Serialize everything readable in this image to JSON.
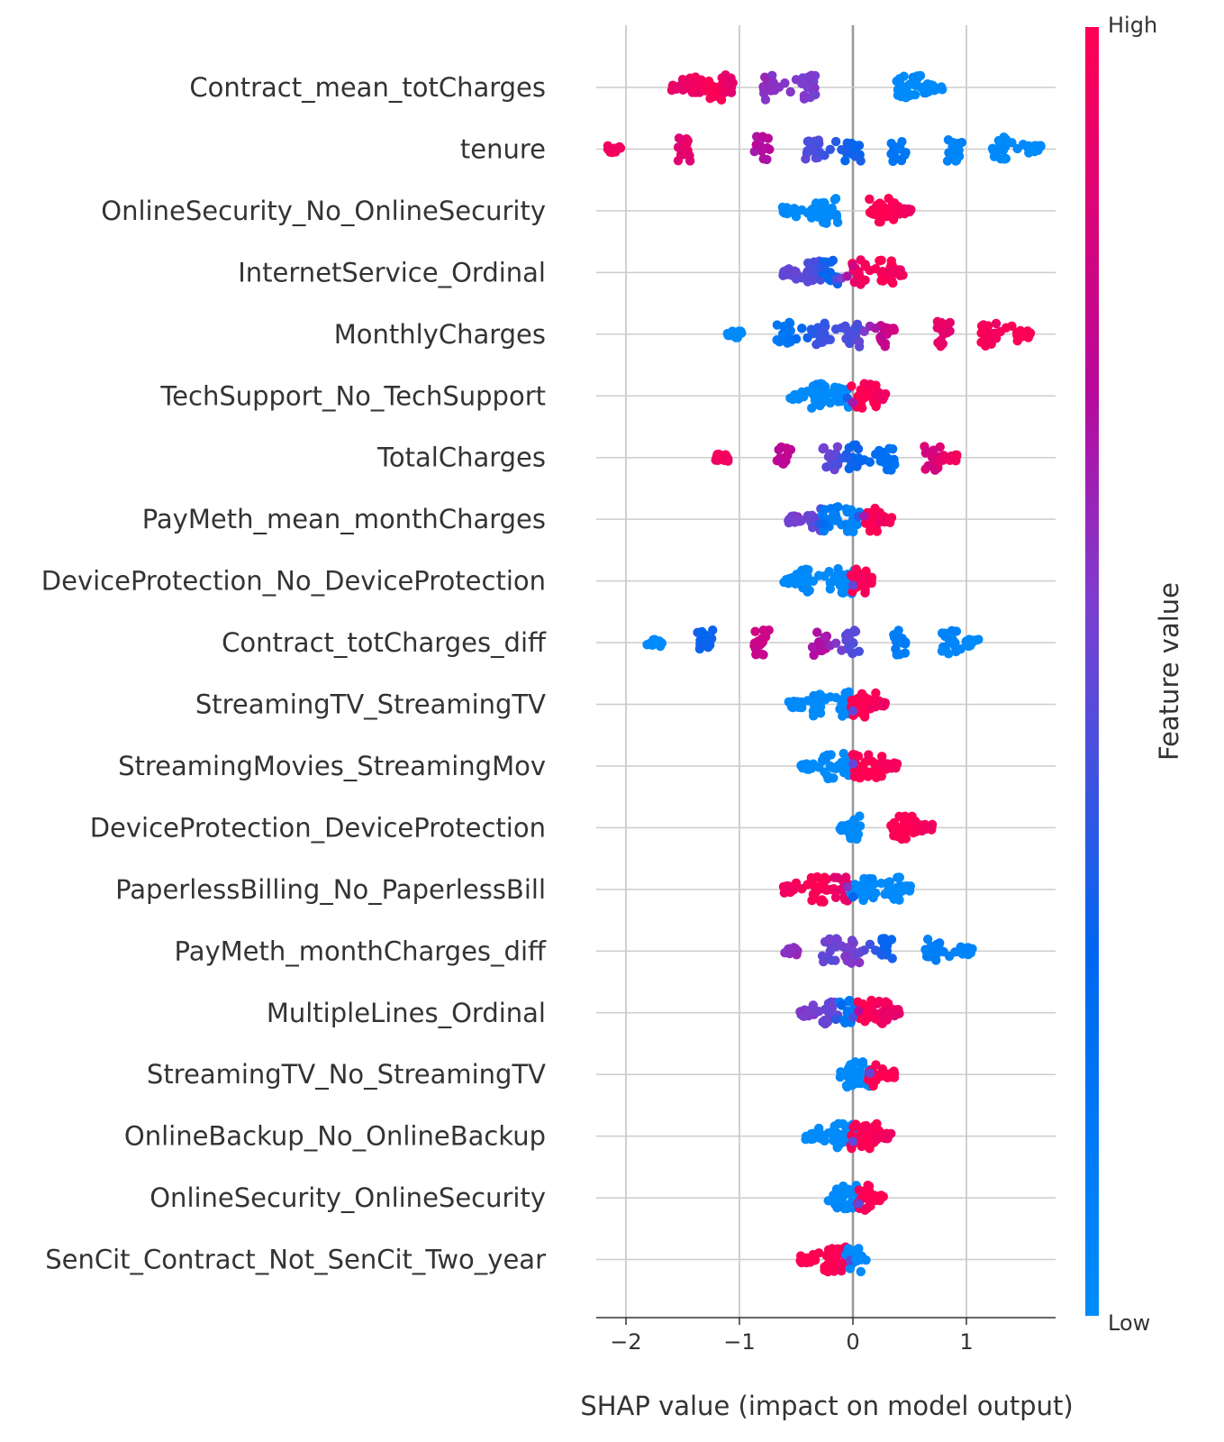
{
  "chart_data": {
    "type": "scatter",
    "subtype": "shap-beeswarm",
    "title": "",
    "xlabel": "SHAP value (impact on model output)",
    "ylabel": "",
    "xlim": [
      -2.25,
      1.8
    ],
    "xticks": [
      -2,
      -1,
      0,
      1
    ],
    "xtick_labels": [
      "−2",
      "−1",
      "0",
      "1"
    ],
    "grid": "vertical lines at ticks, horizontal line per feature row",
    "colorbar": {
      "label": "Feature value",
      "high_label": "High",
      "low_label": "Low",
      "high_color": "#ff0052",
      "mid_color": "#8b12b9",
      "low_color": "#008bfb"
    },
    "features": [
      {
        "name": "Contract_mean_totCharges",
        "points": [
          [
            -1.55,
            0.9
          ],
          [
            -1.4,
            0.95
          ],
          [
            -1.2,
            1.0
          ],
          [
            -1.1,
            0.9
          ],
          [
            -0.75,
            0.6
          ],
          [
            -0.4,
            0.55
          ],
          [
            0.45,
            0.0
          ],
          [
            0.6,
            0.0
          ],
          [
            0.72,
            0.0
          ]
        ]
      },
      {
        "name": "tenure",
        "points": [
          [
            -2.1,
            0.95
          ],
          [
            -1.5,
            0.9
          ],
          [
            -0.8,
            0.7
          ],
          [
            -0.35,
            0.45
          ],
          [
            0.0,
            0.3
          ],
          [
            0.4,
            0.15
          ],
          [
            0.9,
            0.05
          ],
          [
            1.3,
            0.02
          ],
          [
            1.6,
            0.0
          ]
        ]
      },
      {
        "name": "OnlineSecurity_No_OnlineSecurity",
        "points": [
          [
            -0.55,
            0.0
          ],
          [
            -0.3,
            0.0
          ],
          [
            -0.2,
            0.0
          ],
          [
            0.2,
            1.0
          ],
          [
            0.3,
            1.0
          ],
          [
            0.45,
            0.95
          ]
        ]
      },
      {
        "name": "InternetService_Ordinal",
        "points": [
          [
            -0.55,
            0.5
          ],
          [
            -0.35,
            0.45
          ],
          [
            -0.2,
            0.3
          ],
          [
            0.05,
            0.95
          ],
          [
            0.3,
            1.0
          ],
          [
            0.38,
            0.95
          ]
        ]
      },
      {
        "name": "MonthlyCharges",
        "points": [
          [
            -1.05,
            0.0
          ],
          [
            -0.6,
            0.15
          ],
          [
            -0.3,
            0.4
          ],
          [
            0.0,
            0.45
          ],
          [
            0.3,
            0.8
          ],
          [
            0.8,
            0.9
          ],
          [
            1.2,
            0.95
          ],
          [
            1.5,
            1.0
          ]
        ]
      },
      {
        "name": "TechSupport_No_TechSupport",
        "points": [
          [
            -0.5,
            0.0
          ],
          [
            -0.3,
            0.0
          ],
          [
            -0.1,
            0.0
          ],
          [
            0.05,
            1.0
          ],
          [
            0.15,
            1.0
          ],
          [
            0.22,
            0.95
          ]
        ]
      },
      {
        "name": "TotalCharges",
        "points": [
          [
            -1.15,
            0.95
          ],
          [
            -0.6,
            0.75
          ],
          [
            -0.2,
            0.5
          ],
          [
            0.0,
            0.3
          ],
          [
            0.3,
            0.2
          ],
          [
            0.7,
            0.85
          ],
          [
            0.85,
            0.95
          ]
        ]
      },
      {
        "name": "PayMeth_mean_monthCharges",
        "points": [
          [
            -0.5,
            0.55
          ],
          [
            -0.35,
            0.5
          ],
          [
            -0.2,
            0.1
          ],
          [
            0.0,
            0.05
          ],
          [
            0.15,
            1.0
          ],
          [
            0.28,
            0.95
          ]
        ]
      },
      {
        "name": "DeviceProtection_No_DeviceProtection",
        "points": [
          [
            -0.55,
            0.0
          ],
          [
            -0.45,
            0.0
          ],
          [
            -0.15,
            0.0
          ],
          [
            -0.05,
            0.0
          ],
          [
            0.05,
            1.0
          ],
          [
            0.1,
            0.95
          ]
        ]
      },
      {
        "name": "Contract_totCharges_diff",
        "points": [
          [
            -1.75,
            0.0
          ],
          [
            -1.3,
            0.3
          ],
          [
            -0.8,
            0.8
          ],
          [
            -0.3,
            0.7
          ],
          [
            0.0,
            0.45
          ],
          [
            0.4,
            0.1
          ],
          [
            0.85,
            0.05
          ],
          [
            1.05,
            0.0
          ]
        ]
      },
      {
        "name": "StreamingTV_StreamingTV",
        "points": [
          [
            -0.5,
            0.0
          ],
          [
            -0.3,
            0.0
          ],
          [
            -0.05,
            0.0
          ],
          [
            0.05,
            1.0
          ],
          [
            0.15,
            1.0
          ],
          [
            0.22,
            0.95
          ]
        ]
      },
      {
        "name": "StreamingMovies_StreamingMov",
        "points": [
          [
            -0.4,
            0.0
          ],
          [
            -0.2,
            0.0
          ],
          [
            -0.05,
            0.0
          ],
          [
            0.05,
            1.0
          ],
          [
            0.2,
            1.0
          ],
          [
            0.32,
            0.95
          ]
        ]
      },
      {
        "name": "DeviceProtection_DeviceProtection",
        "points": [
          [
            -0.05,
            0.0
          ],
          [
            0.0,
            0.0
          ],
          [
            0.4,
            1.0
          ],
          [
            0.5,
            1.0
          ],
          [
            0.65,
            0.95
          ]
        ]
      },
      {
        "name": "PaperlessBilling_No_PaperlessBill",
        "points": [
          [
            -0.55,
            0.95
          ],
          [
            -0.3,
            1.0
          ],
          [
            -0.1,
            0.9
          ],
          [
            0.05,
            0.0
          ],
          [
            0.15,
            0.0
          ],
          [
            0.35,
            0.0
          ],
          [
            0.45,
            0.0
          ]
        ]
      },
      {
        "name": "PayMeth_monthCharges_diff",
        "points": [
          [
            -0.55,
            0.6
          ],
          [
            -0.2,
            0.5
          ],
          [
            0.0,
            0.55
          ],
          [
            0.3,
            0.3
          ],
          [
            0.7,
            0.1
          ],
          [
            1.0,
            0.05
          ]
        ]
      },
      {
        "name": "MultipleLines_Ordinal",
        "points": [
          [
            -0.4,
            0.55
          ],
          [
            -0.2,
            0.5
          ],
          [
            -0.05,
            0.15
          ],
          [
            0.1,
            1.0
          ],
          [
            0.25,
            0.95
          ],
          [
            0.35,
            0.9
          ]
        ]
      },
      {
        "name": "StreamingTV_No_StreamingTV",
        "points": [
          [
            -0.05,
            0.0
          ],
          [
            0.0,
            0.0
          ],
          [
            0.1,
            0.0
          ],
          [
            0.2,
            1.0
          ],
          [
            0.3,
            1.0
          ]
        ]
      },
      {
        "name": "OnlineBackup_No_OnlineBackup",
        "points": [
          [
            -0.35,
            0.0
          ],
          [
            -0.15,
            0.0
          ],
          [
            -0.05,
            0.0
          ],
          [
            0.05,
            1.0
          ],
          [
            0.15,
            1.0
          ],
          [
            0.27,
            0.95
          ]
        ]
      },
      {
        "name": "OnlineSecurity_OnlineSecurity",
        "points": [
          [
            -0.15,
            0.0
          ],
          [
            -0.1,
            0.0
          ],
          [
            0.0,
            0.0
          ],
          [
            0.1,
            1.0
          ],
          [
            0.2,
            1.0
          ]
        ]
      },
      {
        "name": "SenCit_Contract_Not_SenCit_Two_year",
        "points": [
          [
            -0.4,
            1.0
          ],
          [
            -0.2,
            1.0
          ],
          [
            -0.05,
            0.95
          ],
          [
            0.0,
            0.0
          ],
          [
            0.05,
            0.0
          ]
        ]
      }
    ]
  }
}
